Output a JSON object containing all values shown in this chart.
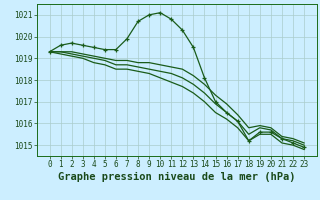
{
  "title": "Graphe pression niveau de la mer (hPa)",
  "background_color": "#cceeff",
  "grid_color": "#aacccc",
  "line_color": "#1a5c1a",
  "series": [
    {
      "values": [
        1019.3,
        1019.6,
        1019.7,
        1019.6,
        1019.5,
        1019.4,
        1019.4,
        1019.9,
        1020.7,
        1021.0,
        1021.1,
        1020.8,
        1020.3,
        1019.5,
        1018.1,
        1017.0,
        1016.5,
        1016.1,
        1015.2,
        1015.6,
        1015.6,
        1015.3,
        1015.1,
        1014.9
      ],
      "has_markers": true
    },
    {
      "values": [
        1019.3,
        1019.3,
        1019.3,
        1019.2,
        1019.1,
        1019.0,
        1018.9,
        1018.9,
        1018.8,
        1018.8,
        1018.7,
        1018.6,
        1018.5,
        1018.2,
        1017.8,
        1017.3,
        1016.9,
        1016.4,
        1015.8,
        1015.9,
        1015.8,
        1015.4,
        1015.3,
        1015.1
      ],
      "has_markers": false
    },
    {
      "values": [
        1019.3,
        1019.3,
        1019.2,
        1019.1,
        1019.0,
        1018.9,
        1018.7,
        1018.7,
        1018.6,
        1018.5,
        1018.4,
        1018.3,
        1018.1,
        1017.8,
        1017.4,
        1016.9,
        1016.5,
        1016.1,
        1015.5,
        1015.8,
        1015.7,
        1015.3,
        1015.2,
        1015.0
      ],
      "has_markers": false
    },
    {
      "values": [
        1019.3,
        1019.2,
        1019.1,
        1019.0,
        1018.8,
        1018.7,
        1018.5,
        1018.5,
        1018.4,
        1018.3,
        1018.1,
        1017.9,
        1017.7,
        1017.4,
        1017.0,
        1016.5,
        1016.2,
        1015.8,
        1015.2,
        1015.5,
        1015.5,
        1015.1,
        1015.0,
        1014.8
      ],
      "has_markers": false
    }
  ],
  "ylim": [
    1014.5,
    1021.5
  ],
  "yticks": [
    1015,
    1016,
    1017,
    1018,
    1019,
    1020,
    1021
  ],
  "xticks": [
    0,
    1,
    2,
    3,
    4,
    5,
    6,
    7,
    8,
    9,
    10,
    11,
    12,
    13,
    14,
    15,
    16,
    17,
    18,
    19,
    20,
    21,
    22,
    23
  ],
  "tick_fontsize": 5.5,
  "title_fontsize": 7.5
}
